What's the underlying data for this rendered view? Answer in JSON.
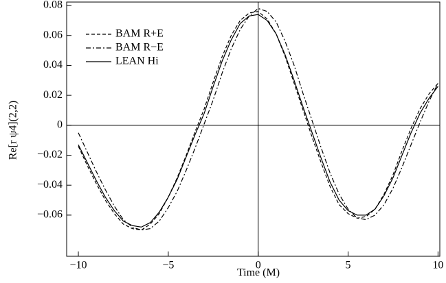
{
  "chart_data": {
    "type": "line",
    "x_label": "Time (M)",
    "y_label": "Re[r ψ4](2,2)",
    "xlim": [
      -10.65,
      10.1
    ],
    "ylim": [
      -0.0875,
      0.0823
    ],
    "xticks": [
      {
        "value": -10,
        "label": "−10"
      },
      {
        "value": -5,
        "label": "−5"
      },
      0,
      5,
      10
    ],
    "yticks": [
      {
        "value": -0.06,
        "label": "−0.06"
      },
      {
        "value": -0.04,
        "label": "−0.04"
      },
      {
        "value": -0.02,
        "label": "−0.02"
      },
      0,
      0.02,
      0.04,
      0.06,
      0.08
    ],
    "x": [
      -10,
      -9.5,
      -9,
      -8.5,
      -8,
      -7.5,
      -7,
      -6.5,
      -6,
      -5.5,
      -5,
      -4.5,
      -4,
      -3.5,
      -3,
      -2.5,
      -2,
      -1.5,
      -1,
      -0.5,
      0,
      0.5,
      1,
      1.5,
      2,
      2.5,
      3,
      3.5,
      4,
      4.5,
      5,
      5.5,
      6,
      6.5,
      7,
      7.5,
      8,
      8.5,
      9,
      9.5,
      10
    ],
    "series": [
      {
        "name": "BAM R+E",
        "color": "#000000",
        "dash": "5,3",
        "values": [
          -0.014,
          -0.027,
          -0.039,
          -0.05,
          -0.059,
          -0.066,
          -0.069,
          -0.07,
          -0.066,
          -0.059,
          -0.048,
          -0.035,
          -0.02,
          -0.004,
          0.011,
          0.029,
          0.046,
          0.06,
          0.07,
          0.075,
          0.076,
          0.071,
          0.061,
          0.046,
          0.028,
          0.01,
          -0.008,
          -0.025,
          -0.041,
          -0.053,
          -0.059,
          -0.062,
          -0.061,
          -0.056,
          -0.046,
          -0.033,
          -0.017,
          -0.002,
          0.011,
          0.021,
          0.028
        ]
      },
      {
        "name": "BAM R−E",
        "color": "#000000",
        "dash": "7,3,2,3",
        "values": [
          -0.005,
          -0.018,
          -0.031,
          -0.043,
          -0.054,
          -0.063,
          -0.068,
          -0.07,
          -0.069,
          -0.064,
          -0.055,
          -0.044,
          -0.03,
          -0.015,
          0.001,
          0.017,
          0.035,
          0.051,
          0.064,
          0.073,
          0.078,
          0.076,
          0.069,
          0.056,
          0.04,
          0.021,
          0.003,
          -0.015,
          -0.032,
          -0.046,
          -0.056,
          -0.062,
          -0.063,
          -0.06,
          -0.053,
          -0.042,
          -0.028,
          -0.013,
          0.002,
          0.016,
          0.028
        ]
      },
      {
        "name": "LEAN Hi",
        "color": "#000000",
        "dash": "",
        "values": [
          -0.013,
          -0.025,
          -0.037,
          -0.048,
          -0.057,
          -0.064,
          -0.067,
          -0.068,
          -0.065,
          -0.058,
          -0.048,
          -0.036,
          -0.021,
          -0.006,
          0.008,
          0.026,
          0.043,
          0.057,
          0.068,
          0.073,
          0.074,
          0.07,
          0.061,
          0.047,
          0.03,
          0.012,
          -0.005,
          -0.022,
          -0.038,
          -0.05,
          -0.057,
          -0.06,
          -0.06,
          -0.056,
          -0.047,
          -0.035,
          -0.02,
          -0.005,
          0.008,
          0.018,
          0.026
        ]
      }
    ],
    "legend": "top-left"
  }
}
